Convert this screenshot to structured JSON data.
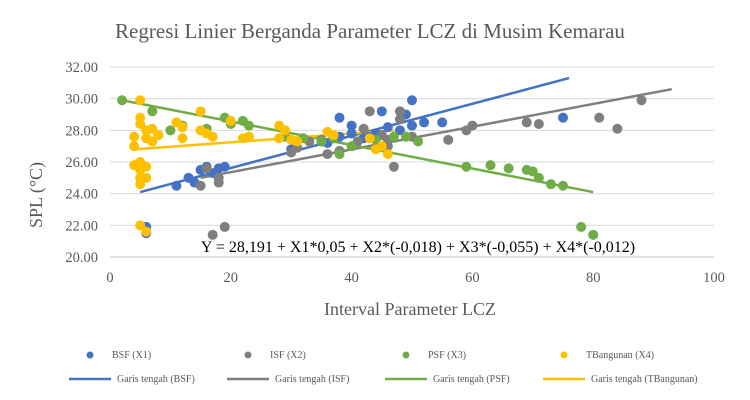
{
  "chart_data": {
    "type": "scatter",
    "title": "Regresi Linier Berganda Parameter LCZ di Musim Kemarau",
    "xlabel": "Interval Parameter LCZ",
    "ylabel": "SPL (°C)",
    "xlim": [
      0,
      100
    ],
    "ylim": [
      20,
      32
    ],
    "x_ticks": [
      "0",
      "20",
      "40",
      "60",
      "80",
      "100"
    ],
    "y_ticks": [
      "20.00",
      "22.00",
      "24.00",
      "26.00",
      "28.00",
      "30.00",
      "32.00"
    ],
    "grid": "horizontal",
    "legend_position": "bottom",
    "annotation": "Y = 28,191 + X1*0,05 + X2*(-0,018) + X3*(-0,055) + X4*(-0,012)",
    "series": [
      {
        "name": "BSF (X1)",
        "color": "#4472C4",
        "points": [
          [
            6,
            21.9
          ],
          [
            6,
            21.5
          ],
          [
            11,
            24.5
          ],
          [
            13,
            25.0
          ],
          [
            14,
            24.7
          ],
          [
            15,
            25.5
          ],
          [
            16,
            25.7
          ],
          [
            17,
            25.3
          ],
          [
            18,
            25.6
          ],
          [
            19,
            25.7
          ],
          [
            30,
            26.8
          ],
          [
            35,
            27.3
          ],
          [
            36,
            27.2
          ],
          [
            37,
            27.5
          ],
          [
            38,
            27.6
          ],
          [
            38,
            28.8
          ],
          [
            40,
            27.8
          ],
          [
            40,
            28.3
          ],
          [
            42,
            27.5
          ],
          [
            43,
            27.6
          ],
          [
            44,
            27.8
          ],
          [
            45,
            29.2
          ],
          [
            46,
            28.2
          ],
          [
            48,
            28.0
          ],
          [
            49,
            29.0
          ],
          [
            50,
            29.9
          ],
          [
            50,
            28.3
          ],
          [
            52,
            28.5
          ],
          [
            55,
            28.5
          ],
          [
            75,
            28.8
          ]
        ]
      },
      {
        "name": "ISF (X2)",
        "color": "#7F7F7F",
        "points": [
          [
            15,
            24.5
          ],
          [
            16,
            25.6
          ],
          [
            17,
            21.4
          ],
          [
            18,
            25.0
          ],
          [
            18,
            24.7
          ],
          [
            19,
            21.9
          ],
          [
            30,
            26.6
          ],
          [
            31,
            26.9
          ],
          [
            33,
            27.3
          ],
          [
            35,
            27.4
          ],
          [
            36,
            26.5
          ],
          [
            37,
            27.6
          ],
          [
            38,
            26.7
          ],
          [
            41,
            27.3
          ],
          [
            42,
            28.1
          ],
          [
            43,
            29.2
          ],
          [
            45,
            27.7
          ],
          [
            46,
            27.0
          ],
          [
            46,
            27.4
          ],
          [
            47,
            25.7
          ],
          [
            48,
            28.7
          ],
          [
            48,
            29.2
          ],
          [
            50,
            27.6
          ],
          [
            56,
            27.4
          ],
          [
            59,
            28.0
          ],
          [
            60,
            28.3
          ],
          [
            69,
            28.5
          ],
          [
            71,
            28.4
          ],
          [
            81,
            28.8
          ],
          [
            84,
            28.1
          ],
          [
            88,
            29.9
          ]
        ]
      },
      {
        "name": "PSF (X3)",
        "color": "#70AD47",
        "points": [
          [
            2,
            29.9
          ],
          [
            7,
            29.2
          ],
          [
            10,
            28.0
          ],
          [
            12,
            28.3
          ],
          [
            16,
            28.1
          ],
          [
            19,
            28.8
          ],
          [
            20,
            28.4
          ],
          [
            22,
            28.6
          ],
          [
            23,
            28.3
          ],
          [
            29,
            27.6
          ],
          [
            32,
            27.5
          ],
          [
            35,
            27.3
          ],
          [
            37,
            27.5
          ],
          [
            38,
            26.5
          ],
          [
            40,
            27.0
          ],
          [
            44,
            27.4
          ],
          [
            47,
            27.6
          ],
          [
            49,
            27.6
          ],
          [
            51,
            27.3
          ],
          [
            59,
            25.7
          ],
          [
            63,
            25.8
          ],
          [
            66,
            25.6
          ],
          [
            69,
            25.5
          ],
          [
            70,
            25.4
          ],
          [
            71,
            25.0
          ],
          [
            73,
            24.6
          ],
          [
            75,
            24.5
          ],
          [
            78,
            21.9
          ],
          [
            80,
            21.4
          ]
        ]
      },
      {
        "name": "TBangunan (X4)",
        "color": "#FFC000",
        "points": [
          [
            4,
            27.6
          ],
          [
            4,
            27.0
          ],
          [
            4,
            25.8
          ],
          [
            5,
            25.5
          ],
          [
            5,
            26.0
          ],
          [
            5,
            25.0
          ],
          [
            5,
            24.6
          ],
          [
            5,
            22.0
          ],
          [
            5,
            28.4
          ],
          [
            5,
            28.8
          ],
          [
            5,
            29.9
          ],
          [
            6,
            21.6
          ],
          [
            6,
            25.0
          ],
          [
            6,
            25.7
          ],
          [
            6,
            27.5
          ],
          [
            6,
            28.0
          ],
          [
            7,
            28.1
          ],
          [
            7,
            27.3
          ],
          [
            8,
            27.7
          ],
          [
            11,
            28.5
          ],
          [
            12,
            27.5
          ],
          [
            12,
            28.2
          ],
          [
            15,
            29.2
          ],
          [
            15,
            28.0
          ],
          [
            16,
            27.8
          ],
          [
            17,
            27.6
          ],
          [
            20,
            28.6
          ],
          [
            22,
            27.5
          ],
          [
            23,
            27.6
          ],
          [
            28,
            28.3
          ],
          [
            28,
            27.5
          ],
          [
            29,
            28.0
          ],
          [
            30,
            27.4
          ],
          [
            31,
            27.3
          ],
          [
            36,
            27.9
          ],
          [
            37,
            27.7
          ],
          [
            43,
            27.5
          ],
          [
            44,
            26.8
          ],
          [
            45,
            27.0
          ],
          [
            46,
            26.5
          ]
        ]
      }
    ],
    "trendlines": [
      {
        "name": "Garis tengah (BSF)",
        "color": "#4472C4",
        "x": [
          5,
          76
        ],
        "y": [
          24.1,
          31.3
        ]
      },
      {
        "name": "Garis tengah (ISF)",
        "color": "#7F7F7F",
        "x": [
          15,
          93
        ],
        "y": [
          25.0,
          30.6
        ]
      },
      {
        "name": "Garis tengah (PSF)",
        "color": "#70AD47",
        "x": [
          2,
          80
        ],
        "y": [
          29.9,
          24.1
        ]
      },
      {
        "name": "Garis tengah (TBangunan)",
        "color": "#FFC000",
        "x": [
          4,
          47
        ],
        "y": [
          26.8,
          28.0
        ]
      }
    ]
  }
}
